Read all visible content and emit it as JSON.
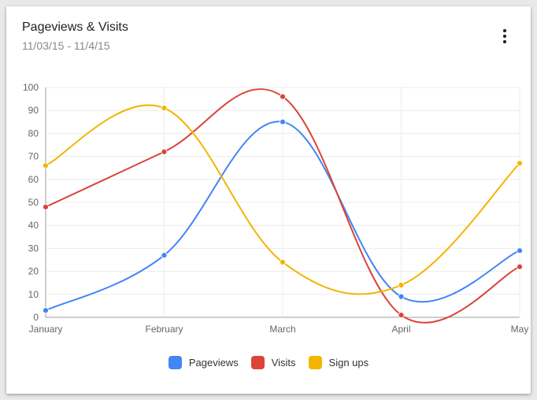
{
  "card": {
    "title": "Pageviews & Visits",
    "subtitle": "11/03/15 - 11/4/15",
    "menu_icon": "more-vert-icon"
  },
  "chart_data": {
    "type": "line",
    "categories": [
      "January",
      "February",
      "March",
      "April",
      "May"
    ],
    "ylim": [
      0,
      100
    ],
    "yticks": [
      0,
      10,
      20,
      30,
      40,
      50,
      60,
      70,
      80,
      90,
      100
    ],
    "grid": true,
    "curve": "smooth",
    "legend_position": "bottom",
    "series": [
      {
        "name": "Pageviews",
        "color": "#4285f4",
        "values": [
          3,
          27,
          85,
          9,
          29
        ]
      },
      {
        "name": "Visits",
        "color": "#db4437",
        "values": [
          48,
          72,
          96,
          1,
          22
        ]
      },
      {
        "name": "Sign ups",
        "color": "#f4b400",
        "values": [
          66,
          91,
          24,
          14,
          67
        ]
      }
    ]
  }
}
